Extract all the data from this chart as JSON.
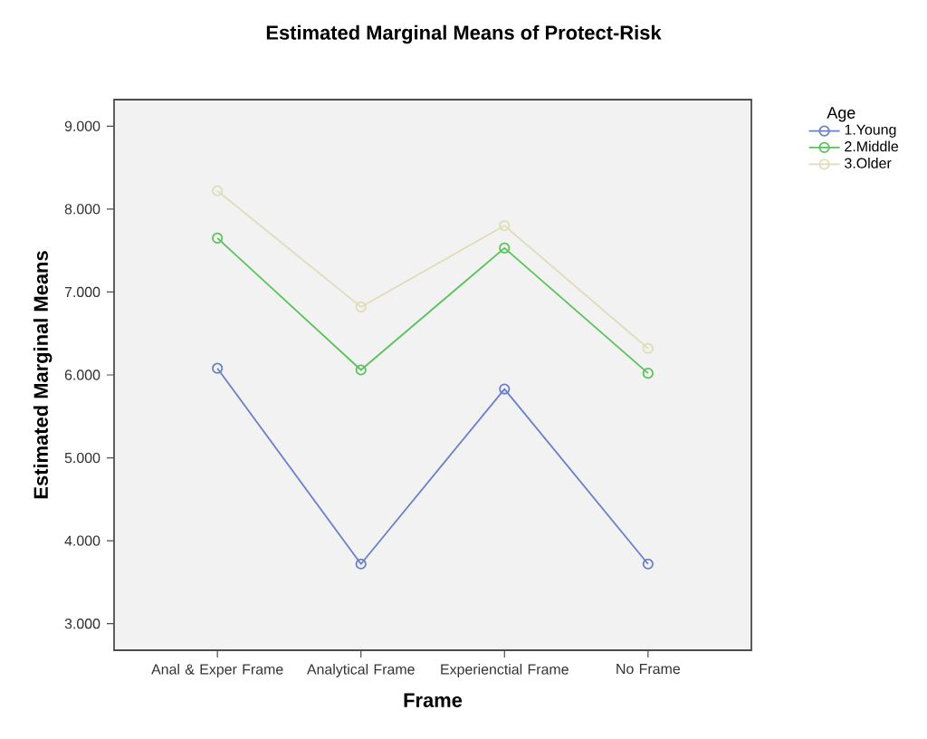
{
  "chart_data": {
    "type": "line",
    "title": "Estimated Marginal Means of Protect-Risk",
    "xlabel": "Frame",
    "ylabel": "Estimated Marginal Means",
    "legend_title": "Age",
    "categories": [
      "Anal & Exper Frame",
      "Analytical Frame",
      "Experienctial Frame",
      "No Frame"
    ],
    "series": [
      {
        "name": "1.Young",
        "color": "#6b7fc8",
        "values": [
          6.08,
          3.72,
          5.83,
          3.72
        ]
      },
      {
        "name": "2.Middle",
        "color": "#5ac25a",
        "values": [
          7.65,
          6.06,
          7.53,
          6.02
        ]
      },
      {
        "name": "3.Older",
        "color": "#e0dcb8",
        "values": [
          8.22,
          6.82,
          7.8,
          6.32
        ]
      }
    ],
    "ylim": [
      2.68,
      9.32
    ],
    "yticks": [
      {
        "value": 3,
        "label": "3.000"
      },
      {
        "value": 4,
        "label": "4.000"
      },
      {
        "value": 5,
        "label": "5.000"
      },
      {
        "value": 6,
        "label": "6.000"
      },
      {
        "value": 7,
        "label": "7.000"
      },
      {
        "value": 8,
        "label": "8.000"
      },
      {
        "value": 9,
        "label": "9.000"
      }
    ],
    "grid": false,
    "legend": "top right",
    "marker": "circle",
    "line_style": "solid"
  }
}
